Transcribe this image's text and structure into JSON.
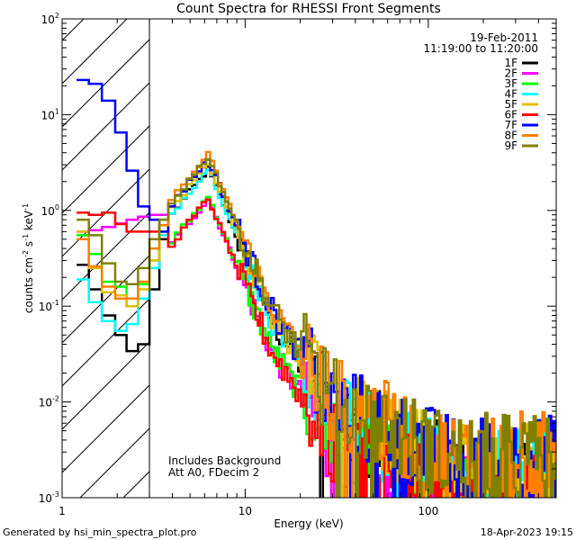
{
  "chart_data": {
    "type": "line",
    "title": "Count Spectra for RHESSI Front Segments",
    "xlabel": "Energy (keV)",
    "ylabel_parts": [
      "counts cm",
      "-2",
      " s",
      "-1",
      " keV",
      "-1"
    ],
    "xscale": "log",
    "yscale": "log",
    "xlim": [
      1,
      500
    ],
    "ylim": [
      0.001,
      100
    ],
    "x_ticks": [
      {
        "v": 1,
        "label": "1"
      },
      {
        "v": 10,
        "label": "10"
      },
      {
        "v": 100,
        "label": "100"
      }
    ],
    "y_ticks": [
      {
        "v": 0.001,
        "base": "10",
        "exp": "-3"
      },
      {
        "v": 0.01,
        "base": "10",
        "exp": "-2"
      },
      {
        "v": 0.1,
        "base": "10",
        "exp": "-1"
      },
      {
        "v": 1,
        "base": "10",
        "exp": "0"
      },
      {
        "v": 10,
        "base": "10",
        "exp": "1"
      },
      {
        "v": 100,
        "base": "10",
        "exp": "2"
      }
    ],
    "hatched_region_max_keV": 3,
    "info_lines": [
      "19-Feb-2011",
      "11:19:00 to 11:20:00"
    ],
    "notes": [
      "Includes Background",
      "Att A0, FDecim 2"
    ],
    "footer_left": "Generated by hsi_min_spectra_plot.pro",
    "footer_right": "18-Apr-2023 19:15",
    "series": [
      {
        "name": "1F",
        "color": "#000000",
        "bias": 0.78,
        "low": [
          0.27,
          0.15,
          0.08,
          0.05,
          0.034,
          0.04,
          0.15,
          0.5
        ]
      },
      {
        "name": "2F",
        "color": "#ff00ff",
        "bias": 0.38,
        "low": [
          0.6,
          0.62,
          0.67,
          0.73,
          0.8,
          0.86,
          0.9,
          0.9
        ]
      },
      {
        "name": "3F",
        "color": "#00ff00",
        "bias": 0.4,
        "low": [
          0.55,
          0.35,
          0.18,
          0.16,
          0.1,
          0.17,
          0.3,
          0.6
        ]
      },
      {
        "name": "4F",
        "color": "#00ffff",
        "bias": 0.8,
        "low": [
          0.19,
          0.11,
          0.07,
          0.055,
          0.065,
          0.12,
          0.25,
          0.55
        ]
      },
      {
        "name": "5F",
        "color": "#e0c000",
        "bias": 0.9,
        "low": [
          0.6,
          0.25,
          0.14,
          0.13,
          0.1,
          0.15,
          0.3,
          0.6
        ]
      },
      {
        "name": "6F",
        "color": "#ff0000",
        "bias": 0.38,
        "low": [
          0.95,
          0.9,
          0.95,
          0.72,
          0.6,
          0.6,
          0.6,
          0.7
        ]
      },
      {
        "name": "7F",
        "color": "#0000ff",
        "bias": 1.0,
        "low": [
          23,
          21,
          14,
          6.5,
          2.6,
          1.1,
          0.8,
          0.6
        ]
      },
      {
        "name": "8F",
        "color": "#ff8000",
        "bias": 1.1,
        "low": [
          0.5,
          0.26,
          0.16,
          0.12,
          0.12,
          0.18,
          0.4,
          0.7
        ]
      },
      {
        "name": "9F",
        "color": "#808000",
        "bias": 1.05,
        "low": [
          0.8,
          0.55,
          0.28,
          0.18,
          0.17,
          0.25,
          0.5,
          0.8
        ]
      }
    ],
    "peak": {
      "energy_keV": 6.2,
      "value_7F": 3.5,
      "spread_low": 0.38,
      "spread_high": 1.1
    }
  }
}
